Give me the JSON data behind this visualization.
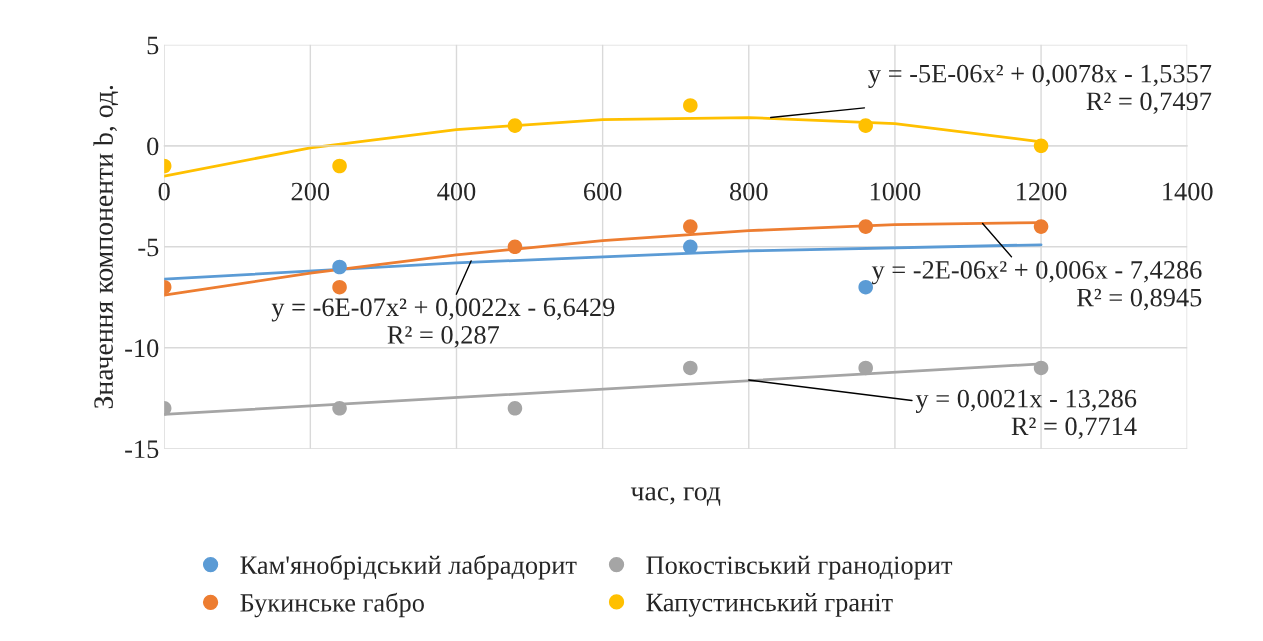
{
  "chart_data": {
    "type": "scatter",
    "xlabel": "час, год",
    "ylabel": "Значення компоненти b, од.",
    "x": [
      0,
      240,
      480,
      720,
      960,
      1200
    ],
    "xlim": [
      0,
      1400
    ],
    "xticks": [
      0,
      200,
      400,
      600,
      800,
      1000,
      1200,
      1400
    ],
    "ylim": [
      -15,
      5
    ],
    "yticks": [
      -15,
      -10,
      -5,
      0,
      5
    ],
    "grid": true,
    "legend": "bottom",
    "marker": "circle",
    "series": [
      {
        "name": "Кам'янобрідський лабрадорит",
        "color": "#5b9bd5",
        "values": [
          null,
          -6,
          null,
          -5,
          -7,
          null
        ]
      },
      {
        "name": "Букинське габро",
        "color": "#ed7d31",
        "values": [
          -7,
          -7,
          -5,
          -4,
          -4,
          -4
        ]
      },
      {
        "name": "Покостівський гранодіорит",
        "color": "#a5a5a5",
        "values": [
          -13,
          -13,
          -13,
          -11,
          -11,
          -11
        ]
      },
      {
        "name": "Капустинський граніт",
        "color": "#ffc000",
        "values": [
          -1,
          -1,
          1,
          2,
          1,
          0
        ]
      },
      {
        "type": "line",
        "marker": "none",
        "color": "#5b9bd5",
        "x": [
          0,
          400,
          800,
          1200
        ],
        "values": [
          -6.6,
          -5.8,
          -5.2,
          -4.9
        ]
      },
      {
        "type": "line",
        "marker": "none",
        "color": "#ed7d31",
        "x": [
          0,
          200,
          400,
          600,
          800,
          1000,
          1200
        ],
        "values": [
          -7.4,
          -6.3,
          -5.4,
          -4.7,
          -4.2,
          -3.9,
          -3.8
        ]
      },
      {
        "type": "line",
        "marker": "none",
        "color": "#a5a5a5",
        "x": [
          0,
          1200
        ],
        "values": [
          -13.3,
          -10.8
        ]
      },
      {
        "type": "line",
        "marker": "none",
        "color": "#ffc000",
        "x": [
          0,
          200,
          400,
          600,
          800,
          1000,
          1200
        ],
        "values": [
          -1.5,
          -0.1,
          0.8,
          1.3,
          1.4,
          1.1,
          0.2
        ]
      }
    ],
    "annotations": [
      {
        "text": "y = -5E-06x² + 0,0078x - 1,5357\nR² = 0,7497",
        "x": 830,
        "y": 1.4
      },
      {
        "text": "y = -2E-06x² + 0,006x - 7,4286\nR² = 0,8945",
        "x": 1120,
        "y": -3.85
      },
      {
        "text": "y = -6E-07x² + 0,0022x - 6,6429\nR² = 0,287",
        "x": 420,
        "y": -5.7
      },
      {
        "text": "y = 0,0021x - 13,286\nR² = 0,7714",
        "x": 800,
        "y": -11.6
      }
    ]
  }
}
